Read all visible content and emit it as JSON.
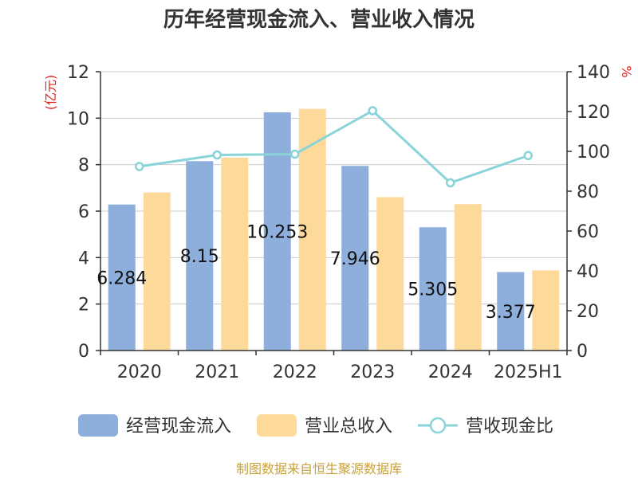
{
  "title": "历年经营现金流入、营业收入情况",
  "source": "制图数据来自恒生聚源数据库",
  "chart_data": {
    "type": "bar",
    "title": "历年经营现金流入、营业收入情况",
    "categories": [
      "2020",
      "2021",
      "2022",
      "2023",
      "2024",
      "2025H1"
    ],
    "left_axis": {
      "unit": "(亿元)",
      "range": [
        0,
        12
      ],
      "ticks": [
        "0",
        "2",
        "4",
        "6",
        "8",
        "10",
        "12"
      ]
    },
    "right_axis": {
      "unit": "%",
      "range": [
        0,
        140
      ],
      "ticks": [
        "0",
        "20",
        "40",
        "60",
        "80",
        "100",
        "120",
        "140"
      ]
    },
    "grid": true,
    "legend_position": "bottom",
    "series": [
      {
        "name": "经营现金流入",
        "kind": "bar",
        "axis": "left",
        "color": "#8eaedb",
        "values": [
          6.284,
          8.15,
          10.253,
          7.946,
          5.305,
          3.377
        ],
        "labels": [
          "6.284",
          "8.15",
          "10.253",
          "7.946",
          "5.305",
          "3.377"
        ]
      },
      {
        "name": "营业总收入",
        "kind": "bar",
        "axis": "left",
        "color": "#fdd99a",
        "values": [
          6.8,
          8.3,
          10.4,
          6.6,
          6.3,
          3.45
        ]
      },
      {
        "name": "营收现金比",
        "kind": "line",
        "axis": "right",
        "color": "#88d4d9",
        "values": [
          92.4,
          98.2,
          98.6,
          120.4,
          84.2,
          97.9
        ]
      }
    ]
  }
}
